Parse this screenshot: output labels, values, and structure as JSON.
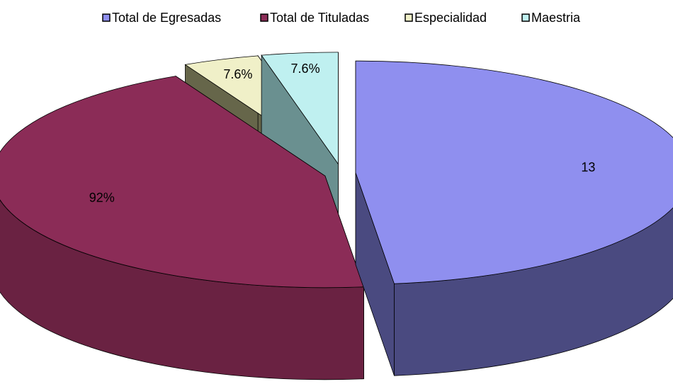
{
  "chart_data": {
    "type": "pie3d",
    "categories": [
      "Total de Egresadas",
      "Total de Tituladas",
      "Especialidad",
      "Maestria"
    ],
    "values": [
      13,
      12,
      1,
      1
    ],
    "value_labels": [
      "13",
      "92%",
      "7.6%",
      "7.6%"
    ],
    "colors": [
      "#8f8fef",
      "#8b2c57",
      "#f0f0c8",
      "#bff0f0"
    ],
    "side_colors": [
      "#4a4a80",
      "#6a2242",
      "#66664a",
      "#6a9090"
    ],
    "legend": "top"
  }
}
